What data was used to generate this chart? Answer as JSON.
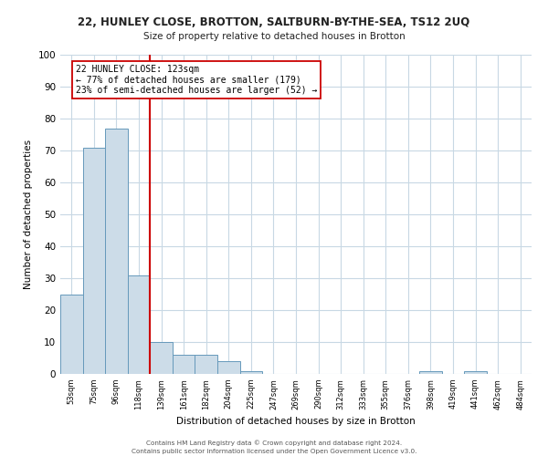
{
  "title_line1": "22, HUNLEY CLOSE, BROTTON, SALTBURN-BY-THE-SEA, TS12 2UQ",
  "title_line2": "Size of property relative to detached houses in Brotton",
  "xlabel": "Distribution of detached houses by size in Brotton",
  "ylabel": "Number of detached properties",
  "bar_labels": [
    "53sqm",
    "75sqm",
    "96sqm",
    "118sqm",
    "139sqm",
    "161sqm",
    "182sqm",
    "204sqm",
    "225sqm",
    "247sqm",
    "269sqm",
    "290sqm",
    "312sqm",
    "333sqm",
    "355sqm",
    "376sqm",
    "398sqm",
    "419sqm",
    "441sqm",
    "462sqm",
    "484sqm"
  ],
  "bar_values": [
    25,
    71,
    77,
    31,
    10,
    6,
    6,
    4,
    1,
    0,
    0,
    0,
    0,
    0,
    0,
    0,
    1,
    0,
    1,
    0,
    0
  ],
  "bar_color": "#ccdce8",
  "bar_edge_color": "#6699bb",
  "vline_color": "#cc0000",
  "annotation_text": "22 HUNLEY CLOSE: 123sqm\n← 77% of detached houses are smaller (179)\n23% of semi-detached houses are larger (52) →",
  "ylim": [
    0,
    100
  ],
  "yticks": [
    0,
    10,
    20,
    30,
    40,
    50,
    60,
    70,
    80,
    90,
    100
  ],
  "footer_line1": "Contains HM Land Registry data © Crown copyright and database right 2024.",
  "footer_line2": "Contains public sector information licensed under the Open Government Licence v3.0.",
  "bg_color": "#ffffff",
  "grid_color": "#c8d8e4"
}
